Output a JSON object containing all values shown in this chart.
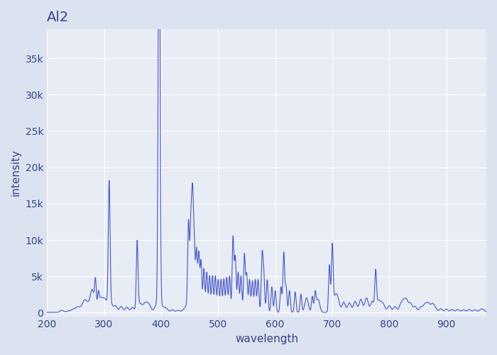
{
  "title": "Al2",
  "xlabel": "wavelength",
  "ylabel": "intensity",
  "line_color": "#4455cc",
  "background_color": "#e8ecf5",
  "figure_background": "#dce3f0",
  "xlim": [
    200,
    970
  ],
  "ylim": [
    -500,
    39000
  ],
  "yticks": [
    0,
    5000,
    10000,
    15000,
    20000,
    25000,
    30000,
    35000
  ],
  "ytick_labels": [
    "0",
    "5k",
    "10k",
    "15k",
    "20k",
    "25k",
    "30k",
    "35k"
  ],
  "xticks": [
    200,
    300,
    400,
    500,
    600,
    700,
    800,
    900
  ],
  "peaks": [
    {
      "wl": 226,
      "intensity": 300
    },
    {
      "wl": 237,
      "intensity": 200
    },
    {
      "wl": 245,
      "intensity": 400
    },
    {
      "wl": 252,
      "intensity": 600
    },
    {
      "wl": 257,
      "intensity": 500
    },
    {
      "wl": 263,
      "intensity": 800
    },
    {
      "wl": 267,
      "intensity": 1200
    },
    {
      "wl": 272,
      "intensity": 900
    },
    {
      "wl": 278,
      "intensity": 2000
    },
    {
      "wl": 281,
      "intensity": 1500
    },
    {
      "wl": 285,
      "intensity": 4000
    },
    {
      "wl": 290,
      "intensity": 2200
    },
    {
      "wl": 294,
      "intensity": 1800
    },
    {
      "wl": 300,
      "intensity": 1500
    },
    {
      "wl": 305,
      "intensity": 1000
    },
    {
      "wl": 309,
      "intensity": 17000
    },
    {
      "wl": 312,
      "intensity": 1200
    },
    {
      "wl": 320,
      "intensity": 900
    },
    {
      "wl": 330,
      "intensity": 800
    },
    {
      "wl": 340,
      "intensity": 700
    },
    {
      "wl": 350,
      "intensity": 700
    },
    {
      "wl": 358,
      "intensity": 9600
    },
    {
      "wl": 363,
      "intensity": 1200
    },
    {
      "wl": 370,
      "intensity": 900
    },
    {
      "wl": 375,
      "intensity": 1000
    },
    {
      "wl": 380,
      "intensity": 800
    },
    {
      "wl": 390,
      "intensity": 600
    },
    {
      "wl": 394,
      "intensity": 700
    },
    {
      "wl": 396,
      "intensity": 29500
    },
    {
      "wl": 397,
      "intensity": 37500
    },
    {
      "wl": 400,
      "intensity": 600
    },
    {
      "wl": 405,
      "intensity": 500
    },
    {
      "wl": 410,
      "intensity": 400
    },
    {
      "wl": 420,
      "intensity": 350
    },
    {
      "wl": 430,
      "intensity": 300
    },
    {
      "wl": 440,
      "intensity": 350
    },
    {
      "wl": 445,
      "intensity": 700
    },
    {
      "wl": 448,
      "intensity": 12000
    },
    {
      "wl": 452,
      "intensity": 11500
    },
    {
      "wl": 455,
      "intensity": 15000
    },
    {
      "wl": 458,
      "intensity": 9000
    },
    {
      "wl": 462,
      "intensity": 8500
    },
    {
      "wl": 466,
      "intensity": 8000
    },
    {
      "wl": 470,
      "intensity": 7000
    },
    {
      "wl": 475,
      "intensity": 6000
    },
    {
      "wl": 480,
      "intensity": 5500
    },
    {
      "wl": 485,
      "intensity": 5000
    },
    {
      "wl": 490,
      "intensity": 5000
    },
    {
      "wl": 495,
      "intensity": 5000
    },
    {
      "wl": 500,
      "intensity": 4500
    },
    {
      "wl": 505,
      "intensity": 4500
    },
    {
      "wl": 510,
      "intensity": 4600
    },
    {
      "wl": 515,
      "intensity": 4800
    },
    {
      "wl": 520,
      "intensity": 5000
    },
    {
      "wl": 526,
      "intensity": 10300
    },
    {
      "wl": 530,
      "intensity": 7500
    },
    {
      "wl": 535,
      "intensity": 5500
    },
    {
      "wl": 540,
      "intensity": 5000
    },
    {
      "wl": 546,
      "intensity": 8000
    },
    {
      "wl": 550,
      "intensity": 5200
    },
    {
      "wl": 555,
      "intensity": 4500
    },
    {
      "wl": 560,
      "intensity": 4300
    },
    {
      "wl": 565,
      "intensity": 4500
    },
    {
      "wl": 570,
      "intensity": 4500
    },
    {
      "wl": 577,
      "intensity": 7700
    },
    {
      "wl": 580,
      "intensity": 5000
    },
    {
      "wl": 586,
      "intensity": 4500
    },
    {
      "wl": 594,
      "intensity": 3500
    },
    {
      "wl": 600,
      "intensity": 3000
    },
    {
      "wl": 610,
      "intensity": 3500
    },
    {
      "wl": 615,
      "intensity": 8200
    },
    {
      "wl": 619,
      "intensity": 3500
    },
    {
      "wl": 625,
      "intensity": 3000
    },
    {
      "wl": 635,
      "intensity": 2800
    },
    {
      "wl": 645,
      "intensity": 2500
    },
    {
      "wl": 655,
      "intensity": 2000
    },
    {
      "wl": 665,
      "intensity": 2200
    },
    {
      "wl": 670,
      "intensity": 2500
    },
    {
      "wl": 675,
      "intensity": 1800
    },
    {
      "wl": 695,
      "intensity": 6500
    },
    {
      "wl": 700,
      "intensity": 9000
    },
    {
      "wl": 705,
      "intensity": 2000
    },
    {
      "wl": 710,
      "intensity": 1600
    },
    {
      "wl": 720,
      "intensity": 1400
    },
    {
      "wl": 730,
      "intensity": 1300
    },
    {
      "wl": 740,
      "intensity": 1500
    },
    {
      "wl": 750,
      "intensity": 1800
    },
    {
      "wl": 760,
      "intensity": 2000
    },
    {
      "wl": 770,
      "intensity": 1500
    },
    {
      "wl": 776,
      "intensity": 5200
    },
    {
      "wl": 780,
      "intensity": 1300
    },
    {
      "wl": 785,
      "intensity": 1000
    },
    {
      "wl": 790,
      "intensity": 900
    },
    {
      "wl": 800,
      "intensity": 900
    },
    {
      "wl": 810,
      "intensity": 800
    },
    {
      "wl": 820,
      "intensity": 1000
    },
    {
      "wl": 825,
      "intensity": 1200
    },
    {
      "wl": 830,
      "intensity": 1500
    },
    {
      "wl": 837,
      "intensity": 1200
    },
    {
      "wl": 845,
      "intensity": 800
    },
    {
      "wl": 855,
      "intensity": 700
    },
    {
      "wl": 862,
      "intensity": 1000
    },
    {
      "wl": 868,
      "intensity": 1200
    },
    {
      "wl": 875,
      "intensity": 1000
    },
    {
      "wl": 880,
      "intensity": 600
    },
    {
      "wl": 890,
      "intensity": 500
    },
    {
      "wl": 900,
      "intensity": 450
    },
    {
      "wl": 910,
      "intensity": 400
    },
    {
      "wl": 920,
      "intensity": 400
    },
    {
      "wl": 930,
      "intensity": 350
    },
    {
      "wl": 940,
      "intensity": 400
    },
    {
      "wl": 950,
      "intensity": 350
    },
    {
      "wl": 960,
      "intensity": 350
    },
    {
      "wl": 965,
      "intensity": 300
    }
  ]
}
